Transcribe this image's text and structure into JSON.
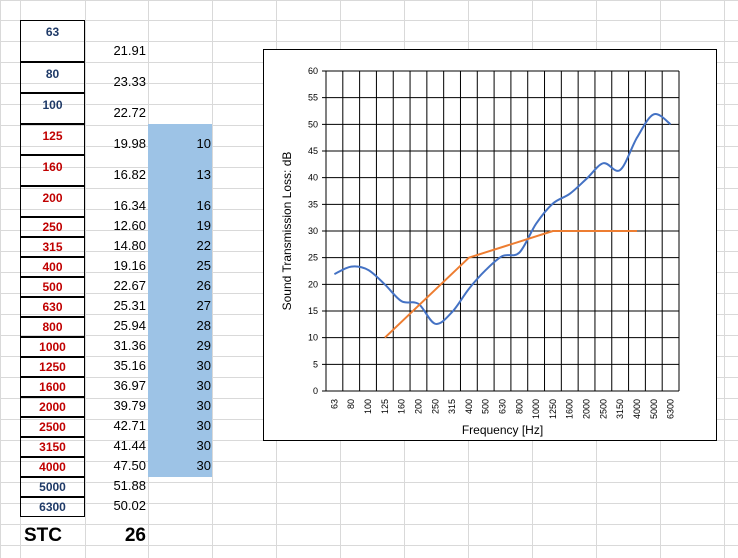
{
  "colors": {
    "freq_blue": "#1f3a68",
    "freq_red": "#c00000",
    "highlight": "#9dc3e6",
    "series_measured": "#4472c4",
    "series_contour": "#ed7d31"
  },
  "table": {
    "frequencies": [
      {
        "label": "63",
        "color": "blue"
      },
      {
        "label": "80",
        "color": "blue"
      },
      {
        "label": "100",
        "color": "blue"
      },
      {
        "label": "125",
        "color": "red"
      },
      {
        "label": "160",
        "color": "red"
      },
      {
        "label": "200",
        "color": "red"
      },
      {
        "label": "250",
        "color": "red"
      },
      {
        "label": "315",
        "color": "red"
      },
      {
        "label": "400",
        "color": "red"
      },
      {
        "label": "500",
        "color": "red"
      },
      {
        "label": "630",
        "color": "red"
      },
      {
        "label": "800",
        "color": "red"
      },
      {
        "label": "1000",
        "color": "red"
      },
      {
        "label": "1250",
        "color": "red"
      },
      {
        "label": "1600",
        "color": "red"
      },
      {
        "label": "2000",
        "color": "red"
      },
      {
        "label": "2500",
        "color": "red"
      },
      {
        "label": "3150",
        "color": "red"
      },
      {
        "label": "4000",
        "color": "red"
      },
      {
        "label": "5000",
        "color": "blue"
      },
      {
        "label": "6300",
        "color": "blue"
      }
    ],
    "tl_values": [
      "21.91",
      "23.33",
      "22.72",
      "19.98",
      "16.82",
      "16.34",
      "12.60",
      "14.80",
      "19.16",
      "22.67",
      "25.31",
      "25.94",
      "31.36",
      "35.16",
      "36.97",
      "39.79",
      "42.71",
      "41.44",
      "47.50",
      "51.88",
      "50.02"
    ],
    "contour_values": [
      "10",
      "13",
      "16",
      "19",
      "22",
      "25",
      "26",
      "27",
      "28",
      "29",
      "30",
      "30",
      "30",
      "30",
      "30",
      "30"
    ],
    "stc_label": "STC",
    "stc_value": "26"
  },
  "chart_data": {
    "type": "line",
    "categories": [
      "63",
      "80",
      "100",
      "125",
      "160",
      "200",
      "250",
      "315",
      "400",
      "500",
      "630",
      "800",
      "1000",
      "1250",
      "1600",
      "2000",
      "2500",
      "3150",
      "4000",
      "5000",
      "6300"
    ],
    "xlabel": "Frequency [Hz]",
    "ylabel": "Sound Transmission Loss: dB",
    "ylim": [
      0,
      60
    ],
    "yticks": [
      0,
      5,
      10,
      15,
      20,
      25,
      30,
      35,
      40,
      45,
      50,
      55,
      60
    ],
    "grid": true,
    "legend": "none",
    "series": [
      {
        "values": [
          21.91,
          23.33,
          22.72,
          19.98,
          16.82,
          16.34,
          12.6,
          14.8,
          19.16,
          22.67,
          25.31,
          25.94,
          31.36,
          35.16,
          36.97,
          39.79,
          42.71,
          41.44,
          47.5,
          51.88,
          50.02
        ]
      },
      {
        "values": [
          null,
          null,
          null,
          10,
          13,
          16,
          19,
          22,
          25,
          26,
          27,
          28,
          29,
          30,
          30,
          30,
          30,
          30,
          30,
          null,
          null
        ]
      }
    ]
  }
}
